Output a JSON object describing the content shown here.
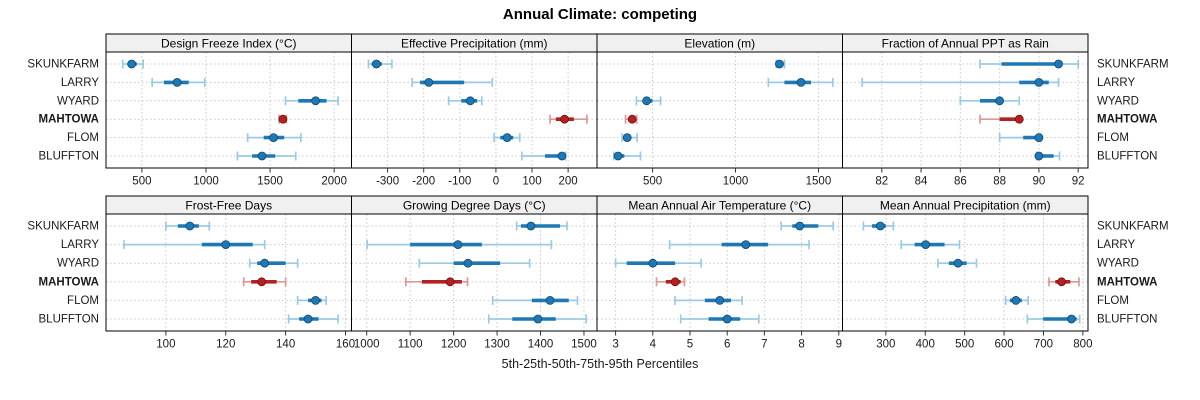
{
  "figure": {
    "title": "Annual Climate: competing",
    "xlabel": "5th-25th-50th-75th-95th Percentiles"
  },
  "chart_data": {
    "type": "dotplot",
    "title": "Annual Climate: competing",
    "xlabel": "5th-25th-50th-75th-95th Percentiles",
    "percentiles": [
      "5th",
      "25th",
      "50th",
      "75th",
      "95th"
    ],
    "sites": [
      "SKUNKFARM",
      "LARRY",
      "WYARD",
      "MAHTOWA",
      "FLOM",
      "BLUFFTON"
    ],
    "highlight_site": "MAHTOWA",
    "legend_position": "none",
    "grid": "dotted",
    "layout": {
      "rows": 2,
      "cols": 4,
      "site_labels": "left-and-right"
    },
    "colors": {
      "series_main": "#1f78b4",
      "series_light": "#9ecae1",
      "series_edge": "#12476e",
      "highlight_main": "#b22222",
      "highlight_light": "#d99a96",
      "highlight_edge": "#6e1010",
      "strip_bg": "#f0f0f0",
      "panel_border": "#000000",
      "gridline": "#c8c8c8",
      "text": "#1a1a1a"
    },
    "panels": [
      {
        "title": "Design Freeze Index (°C)",
        "row": 0,
        "col": 0,
        "xlim": [
          220,
          2135
        ],
        "ticks": [
          500,
          1000,
          1500,
          2000
        ],
        "values": [
          [
            350,
            390,
            420,
            460,
            510
          ],
          [
            580,
            672,
            775,
            865,
            990
          ],
          [
            1620,
            1720,
            1855,
            1940,
            2030
          ],
          [
            1570,
            1585,
            1600,
            1615,
            1627
          ],
          [
            1325,
            1450,
            1527,
            1610,
            1740
          ],
          [
            1245,
            1360,
            1437,
            1540,
            1700
          ]
        ]
      },
      {
        "title": "Effective Precipitation (mm)",
        "row": 0,
        "col": 1,
        "xlim": [
          -400,
          280
        ],
        "ticks": [
          -300,
          -200,
          -100,
          0,
          100,
          200
        ],
        "values": [
          [
            -353,
            -344,
            -331,
            -316,
            -288
          ],
          [
            -232,
            -210,
            -186,
            -88,
            -10
          ],
          [
            -131,
            -96,
            -71,
            -52,
            -39
          ],
          [
            150,
            166,
            190,
            216,
            252
          ],
          [
            -5,
            12,
            31,
            48,
            66
          ],
          [
            72,
            136,
            183,
            190,
            193
          ]
        ]
      },
      {
        "title": "Elevation (m)",
        "row": 0,
        "col": 2,
        "xlim": [
          165,
          1645
        ],
        "ticks": [
          500,
          1000,
          1500
        ],
        "values": [
          [
            1245,
            1255,
            1265,
            1280,
            1295
          ],
          [
            1198,
            1295,
            1395,
            1455,
            1587
          ],
          [
            403,
            440,
            464,
            500,
            548
          ],
          [
            337,
            358,
            377,
            392,
            404
          ],
          [
            317,
            335,
            347,
            370,
            407
          ],
          [
            266,
            280,
            292,
            330,
            427
          ]
        ]
      },
      {
        "title": "Fraction of Annual PPT as Rain",
        "row": 0,
        "col": 3,
        "xlim": [
          80,
          92.5
        ],
        "ticks": [
          82,
          84,
          86,
          88,
          90,
          92
        ],
        "values": [
          [
            87,
            88.1,
            91,
            91.1,
            92
          ],
          [
            81,
            89,
            90,
            90.5,
            91
          ],
          [
            86,
            87,
            88,
            88.2,
            89
          ],
          [
            87,
            88,
            89,
            89.05,
            89.1
          ],
          [
            88,
            89.2,
            90,
            90.05,
            90.1
          ],
          [
            89.9,
            89.95,
            90,
            90.75,
            91.05
          ]
        ]
      },
      {
        "title": "Frost-Free Days",
        "row": 1,
        "col": 0,
        "xlim": [
          80,
          162
        ],
        "ticks": [
          100,
          120,
          140,
          160
        ],
        "values": [
          [
            100,
            104,
            108,
            111,
            114.5
          ],
          [
            86,
            112,
            120,
            129,
            133
          ],
          [
            128,
            130.5,
            133,
            140,
            144
          ],
          [
            126,
            128.5,
            132,
            137,
            140
          ],
          [
            144,
            147.5,
            150,
            152,
            153.5
          ],
          [
            141,
            144.5,
            147.5,
            151,
            157.5
          ]
        ]
      },
      {
        "title": "Growing Degree Days (°C)",
        "row": 1,
        "col": 1,
        "xlim": [
          965,
          1530
        ],
        "ticks": [
          1000,
          1100,
          1200,
          1300,
          1400,
          1500
        ],
        "values": [
          [
            1345,
            1355,
            1378,
            1445,
            1461
          ],
          [
            1001,
            1100,
            1210,
            1265,
            1425
          ],
          [
            1121,
            1200,
            1233,
            1307,
            1375
          ],
          [
            1090,
            1127,
            1192,
            1219,
            1232
          ],
          [
            1290,
            1380,
            1422,
            1465,
            1485
          ],
          [
            1281,
            1335,
            1394,
            1435,
            1505
          ]
        ]
      },
      {
        "title": "Mean Annual Air Temperature (°C)",
        "row": 1,
        "col": 2,
        "xlim": [
          2.5,
          9.1
        ],
        "ticks": [
          3,
          4,
          5,
          6,
          7,
          8,
          9
        ],
        "values": [
          [
            7.45,
            7.75,
            7.95,
            8.45,
            8.85
          ],
          [
            4.45,
            5.85,
            6.5,
            7.1,
            8.2
          ],
          [
            3.0,
            3.3,
            4.0,
            4.6,
            5.3
          ],
          [
            4.1,
            4.35,
            4.6,
            4.75,
            4.85
          ],
          [
            4.6,
            5.4,
            5.8,
            6.1,
            6.4
          ],
          [
            4.75,
            5.5,
            6.0,
            6.35,
            6.85
          ]
        ]
      },
      {
        "title": "Mean Annual Precipitation (mm)",
        "row": 1,
        "col": 3,
        "xlim": [
          190,
          813
        ],
        "ticks": [
          300,
          400,
          500,
          600,
          700,
          800
        ],
        "values": [
          [
            243,
            265,
            286,
            300,
            319
          ],
          [
            339,
            373,
            401,
            449,
            487
          ],
          [
            432,
            460,
            483,
            505,
            530
          ],
          [
            714,
            730,
            746,
            768,
            790
          ],
          [
            604,
            615,
            630,
            645,
            661
          ],
          [
            659,
            699,
            771,
            784,
            792
          ]
        ]
      }
    ]
  }
}
